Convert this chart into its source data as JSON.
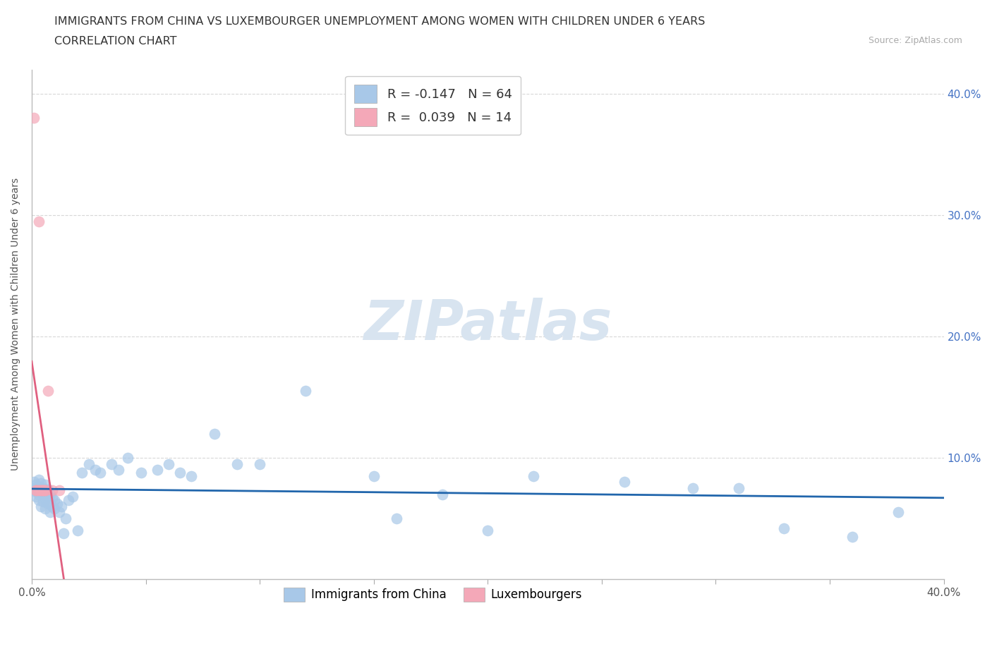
{
  "title_line1": "IMMIGRANTS FROM CHINA VS LUXEMBOURGER UNEMPLOYMENT AMONG WOMEN WITH CHILDREN UNDER 6 YEARS",
  "title_line2": "CORRELATION CHART",
  "source_text": "Source: ZipAtlas.com",
  "ylabel": "Unemployment Among Women with Children Under 6 years",
  "xmin": 0.0,
  "xmax": 0.4,
  "ymin": 0.0,
  "ymax": 0.42,
  "blue_color": "#a8c8e8",
  "pink_color": "#f4a8b8",
  "blue_line_color": "#2166ac",
  "pink_line_color": "#e06080",
  "pink_dash_color": "#e8a0b0",
  "watermark_color": "#d8e4f0",
  "legend_R_blue": "R = -0.147",
  "legend_N_blue": "N = 64",
  "legend_R_pink": "R =  0.039",
  "legend_N_pink": "N = 14",
  "blue_dots_x": [
    0.001,
    0.001,
    0.002,
    0.002,
    0.002,
    0.003,
    0.003,
    0.003,
    0.003,
    0.004,
    0.004,
    0.004,
    0.005,
    0.005,
    0.005,
    0.006,
    0.006,
    0.006,
    0.006,
    0.007,
    0.007,
    0.007,
    0.008,
    0.008,
    0.008,
    0.009,
    0.009,
    0.01,
    0.01,
    0.011,
    0.012,
    0.013,
    0.014,
    0.015,
    0.016,
    0.018,
    0.02,
    0.022,
    0.025,
    0.028,
    0.03,
    0.035,
    0.038,
    0.042,
    0.048,
    0.055,
    0.06,
    0.065,
    0.07,
    0.08,
    0.09,
    0.1,
    0.12,
    0.15,
    0.16,
    0.18,
    0.2,
    0.22,
    0.26,
    0.29,
    0.31,
    0.33,
    0.36,
    0.38
  ],
  "blue_dots_y": [
    0.075,
    0.08,
    0.068,
    0.072,
    0.078,
    0.065,
    0.07,
    0.076,
    0.082,
    0.06,
    0.073,
    0.079,
    0.064,
    0.07,
    0.075,
    0.058,
    0.066,
    0.072,
    0.078,
    0.062,
    0.068,
    0.074,
    0.055,
    0.063,
    0.07,
    0.06,
    0.067,
    0.058,
    0.065,
    0.062,
    0.055,
    0.06,
    0.038,
    0.05,
    0.065,
    0.068,
    0.04,
    0.088,
    0.095,
    0.09,
    0.088,
    0.095,
    0.09,
    0.1,
    0.088,
    0.09,
    0.095,
    0.088,
    0.085,
    0.12,
    0.095,
    0.095,
    0.155,
    0.085,
    0.05,
    0.07,
    0.04,
    0.085,
    0.08,
    0.075,
    0.075,
    0.042,
    0.035,
    0.055
  ],
  "pink_dots_x": [
    0.001,
    0.002,
    0.002,
    0.003,
    0.003,
    0.004,
    0.004,
    0.005,
    0.005,
    0.006,
    0.006,
    0.007,
    0.009,
    0.012
  ],
  "pink_dots_y": [
    0.38,
    0.073,
    0.073,
    0.073,
    0.295,
    0.073,
    0.073,
    0.073,
    0.073,
    0.073,
    0.073,
    0.155,
    0.073,
    0.073
  ],
  "xticks": [
    0.0,
    0.05,
    0.1,
    0.15,
    0.2,
    0.25,
    0.3,
    0.35,
    0.4
  ],
  "ytick_vals": [
    0.0,
    0.1,
    0.2,
    0.3,
    0.4
  ],
  "background_color": "#ffffff",
  "grid_color": "#d8d8d8"
}
